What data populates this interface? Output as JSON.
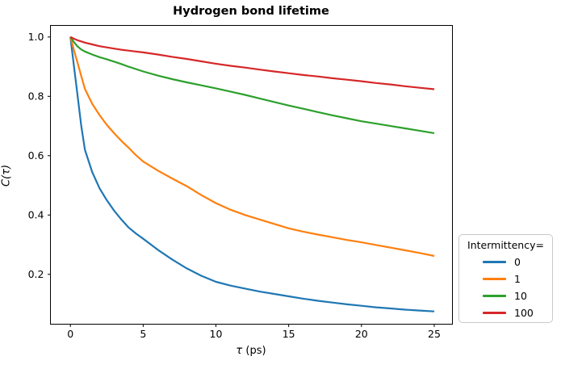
{
  "chart_data": {
    "type": "line",
    "title": "Hydrogen bond lifetime",
    "xlabel": "τ (ps)",
    "ylabel": "C(τ)",
    "xlim": [
      -1.37,
      26.25
    ],
    "ylim": [
      0.032,
      1.039
    ],
    "xticks": [
      0,
      5,
      10,
      15,
      20,
      25
    ],
    "yticks": [
      0.2,
      0.4,
      0.6,
      0.8,
      1.0
    ],
    "grid": false,
    "legend": {
      "title": "Intermittency=",
      "position": "outside lower right",
      "entries": [
        "0",
        "1",
        "10",
        "100"
      ]
    },
    "axis_color": "#000000",
    "x": [
      0,
      0.25,
      0.5,
      0.75,
      1,
      1.5,
      2,
      2.5,
      3,
      3.5,
      4,
      4.5,
      5,
      6,
      7,
      8,
      9,
      10,
      11,
      12,
      13,
      14,
      15,
      16,
      17,
      18,
      19,
      20,
      21,
      22,
      23,
      24,
      25
    ],
    "series": [
      {
        "name": "0",
        "color": "#1f77b4",
        "values": [
          1.0,
          0.9,
          0.8,
          0.7,
          0.62,
          0.545,
          0.49,
          0.45,
          0.415,
          0.385,
          0.358,
          0.338,
          0.32,
          0.283,
          0.25,
          0.22,
          0.195,
          0.175,
          0.162,
          0.152,
          0.142,
          0.134,
          0.126,
          0.118,
          0.111,
          0.105,
          0.099,
          0.094,
          0.089,
          0.085,
          0.081,
          0.078,
          0.075
        ]
      },
      {
        "name": "1",
        "color": "#ff7f0e",
        "values": [
          1.0,
          0.955,
          0.912,
          0.868,
          0.825,
          0.775,
          0.737,
          0.704,
          0.676,
          0.65,
          0.627,
          0.602,
          0.58,
          0.55,
          0.523,
          0.497,
          0.467,
          0.44,
          0.418,
          0.4,
          0.385,
          0.37,
          0.355,
          0.344,
          0.334,
          0.325,
          0.316,
          0.308,
          0.299,
          0.29,
          0.281,
          0.272,
          0.262
        ]
      },
      {
        "name": "10",
        "color": "#2ca02c",
        "values": [
          1.0,
          0.982,
          0.968,
          0.958,
          0.951,
          0.941,
          0.932,
          0.925,
          0.917,
          0.909,
          0.9,
          0.892,
          0.884,
          0.87,
          0.858,
          0.847,
          0.837,
          0.827,
          0.816,
          0.805,
          0.793,
          0.781,
          0.769,
          0.758,
          0.747,
          0.736,
          0.726,
          0.716,
          0.708,
          0.7,
          0.692,
          0.684,
          0.676
        ]
      },
      {
        "name": "100",
        "color": "#d62728",
        "values": [
          1.0,
          0.994,
          0.989,
          0.985,
          0.981,
          0.975,
          0.969,
          0.965,
          0.961,
          0.957,
          0.954,
          0.951,
          0.948,
          0.941,
          0.933,
          0.926,
          0.918,
          0.91,
          0.903,
          0.897,
          0.89,
          0.884,
          0.878,
          0.872,
          0.867,
          0.861,
          0.856,
          0.851,
          0.845,
          0.84,
          0.834,
          0.829,
          0.824
        ]
      }
    ]
  }
}
